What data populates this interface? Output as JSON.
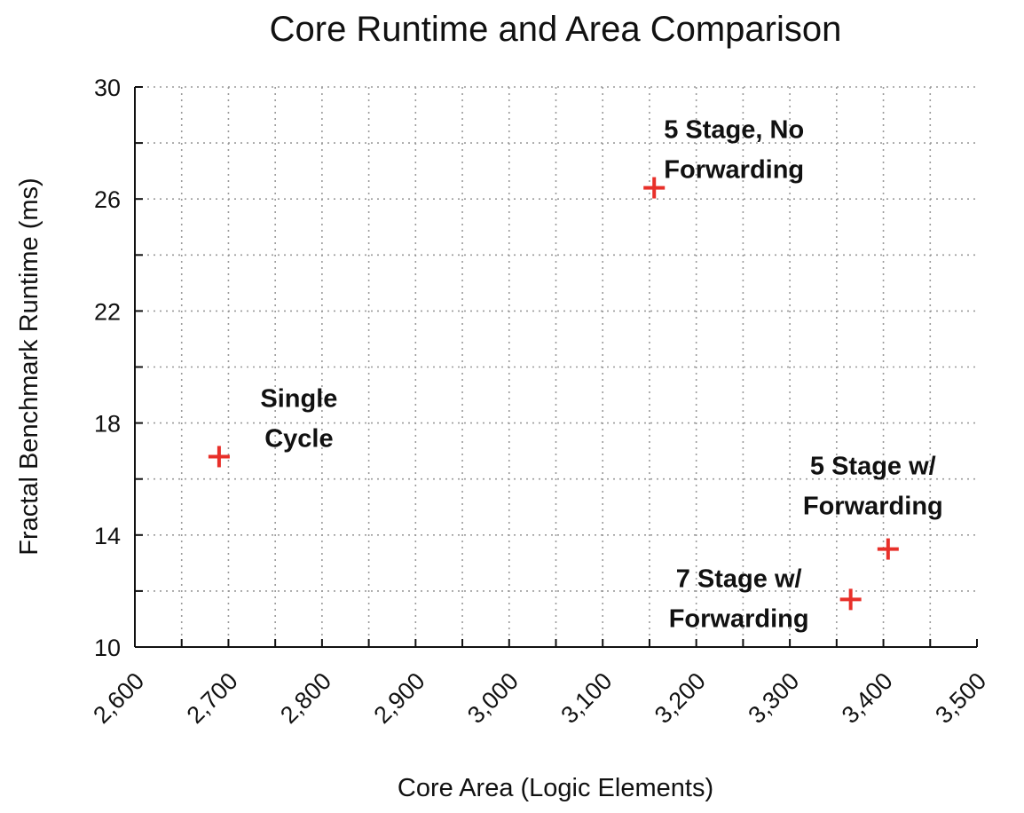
{
  "chart_data": {
    "type": "scatter",
    "title": "Core Runtime and Area Comparison",
    "xlabel": "Core Area (Logic Elements)",
    "ylabel": "Fractal Benchmark Runtime (ms)",
    "xlim": [
      2600,
      3500
    ],
    "ylim": [
      10,
      30
    ],
    "x_ticks": [
      2600,
      2700,
      2800,
      2900,
      3000,
      3100,
      3200,
      3300,
      3400,
      3500
    ],
    "x_tick_labels": [
      "2,600",
      "2,700",
      "2,800",
      "2,900",
      "3,000",
      "3,100",
      "3,200",
      "3,300",
      "3,400",
      "3,500"
    ],
    "y_ticks": [
      10,
      14,
      18,
      22,
      26,
      30
    ],
    "y_tick_labels": [
      "10",
      "14",
      "18",
      "22",
      "26",
      "30"
    ],
    "x_minor_step": 50,
    "y_minor_step": 2,
    "grid": true,
    "marker": "plus",
    "marker_color": "#e8302a",
    "points": [
      {
        "x": 2690,
        "y": 16.8,
        "label_lines": [
          "Single",
          "Cycle"
        ],
        "label_anchor": "upper-right"
      },
      {
        "x": 3155,
        "y": 26.4,
        "label_lines": [
          "5 Stage, No",
          "Forwarding"
        ],
        "label_anchor": "upper-right"
      },
      {
        "x": 3405,
        "y": 13.5,
        "label_lines": [
          "5 Stage w/",
          "Forwarding"
        ],
        "label_anchor": "above"
      },
      {
        "x": 3365,
        "y": 11.7,
        "label_lines": [
          "7 Stage w/",
          "Forwarding"
        ],
        "label_anchor": "left"
      }
    ]
  }
}
